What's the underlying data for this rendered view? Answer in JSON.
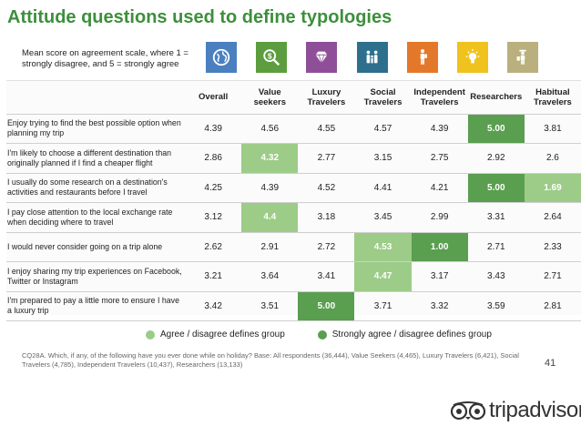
{
  "title": "Attitude questions used to define typologies",
  "scale_note": "Mean score on agreement scale, where 1 = strongly disagree, and 5 = strongly agree",
  "icons": [
    {
      "name": "globe-icon",
      "color": "#4a7fc0"
    },
    {
      "name": "money-search-icon",
      "color": "#5c9e3f"
    },
    {
      "name": "diamond-icon",
      "color": "#8e4f98"
    },
    {
      "name": "family-icon",
      "color": "#2d6f8c"
    },
    {
      "name": "backpacker-icon",
      "color": "#e4782a"
    },
    {
      "name": "lightbulb-icon",
      "color": "#f0c21e"
    },
    {
      "name": "traveler-icon",
      "color": "#b9b07e"
    }
  ],
  "table": {
    "headers": [
      "Overall",
      "Value seekers",
      "Luxury Travelers",
      "Social Travelers",
      "Independent Travelers",
      "Researchers",
      "Habitual Travelers"
    ],
    "rows": [
      {
        "statement": "Enjoy trying to find the best possible option when planning my trip",
        "values": [
          "4.39",
          "4.56",
          "4.55",
          "4.57",
          "4.39",
          "5.00",
          "3.81"
        ],
        "highlight": [
          "",
          "",
          "",
          "",
          "",
          "strong",
          ""
        ]
      },
      {
        "statement": "I'm likely to choose a different destination than originally planned if I find a cheaper flight",
        "values": [
          "2.86",
          "4.32",
          "2.77",
          "3.15",
          "2.75",
          "2.92",
          "2.6"
        ],
        "highlight": [
          "",
          "agree",
          "",
          "",
          "",
          "",
          ""
        ]
      },
      {
        "statement": " I usually do some research on a destination's activities and restaurants before I travel",
        "values": [
          "4.25",
          "4.39",
          "4.52",
          "4.41",
          "4.21",
          "5.00",
          "1.69"
        ],
        "highlight": [
          "",
          "",
          "",
          "",
          "",
          "strong",
          "agree"
        ]
      },
      {
        "statement": "I pay close attention to the local exchange rate when deciding where to travel",
        "values": [
          "3.12",
          "4.4",
          "3.18",
          "3.45",
          "2.99",
          "3.31",
          "2.64"
        ],
        "highlight": [
          "",
          "agree",
          "",
          "",
          "",
          "",
          ""
        ]
      },
      {
        "statement": "I would never consider going on a trip alone",
        "values": [
          "2.62",
          "2.91",
          "2.72",
          "4.53",
          "1.00",
          "2.71",
          "2.33"
        ],
        "highlight": [
          "",
          "",
          "",
          "agree",
          "strong",
          "",
          ""
        ]
      },
      {
        "statement": "I enjoy sharing my trip experiences on Facebook, Twitter or Instagram",
        "values": [
          "3.21",
          "3.64",
          "3.41",
          "4.47",
          "3.17",
          "3.43",
          "2.71"
        ],
        "highlight": [
          "",
          "",
          "",
          "agree",
          "",
          "",
          ""
        ]
      },
      {
        "statement": "I'm prepared to pay a little more to ensure I have a luxury trip",
        "values": [
          "3.42",
          "3.51",
          "5.00",
          "3.71",
          "3.32",
          "3.59",
          "2.81"
        ],
        "highlight": [
          "",
          "",
          "strong",
          "",
          "",
          "",
          ""
        ]
      }
    ]
  },
  "legend": [
    {
      "label": "Agree / disagree defines group",
      "color": "#9ccc88"
    },
    {
      "label": "Strongly agree / disagree defines group",
      "color": "#5a9e4f"
    }
  ],
  "footnote": "CQ28A. Which, if any, of the following have you ever done while on holiday? Base: All respondents (36,444), Value Seekers (4,465), Luxury Travelers (6,421), Social Travelers (4,785), Independent Travelers (10,437), Researchers (13,133)",
  "page_number": "41",
  "logo_text": "tripadvisor",
  "logo_mark": "®"
}
